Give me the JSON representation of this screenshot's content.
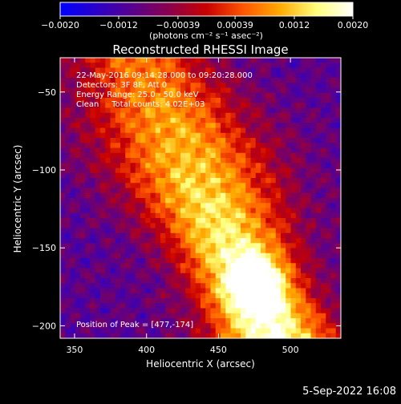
{
  "chart_data": {
    "type": "heatmap",
    "title": "Reconstructed RHESSI Image",
    "xlabel": "Heliocentric X (arcsec)",
    "ylabel": "Heliocentric Y (arcsec)",
    "xlim": [
      340,
      535
    ],
    "ylim": [
      -208,
      -28
    ],
    "xticks": [
      350,
      400,
      450,
      500
    ],
    "yticks": [
      -50,
      -100,
      -150,
      -200
    ],
    "colorbar": {
      "unit_label": "(photons cm⁻² s⁻¹ asec⁻²)",
      "range": [
        -0.002,
        0.002
      ],
      "tick_labels": [
        "−0.0020",
        "−0.0012",
        "−0.00039",
        "0.00039",
        "0.0012",
        "0.0020"
      ],
      "tick_values": [
        -0.002,
        -0.0012,
        -0.00039,
        0.00039,
        0.0012,
        0.002
      ],
      "colors": [
        "#0000ff",
        "#2a00c8",
        "#5a008c",
        "#8c004a",
        "#c80000",
        "#ff5500",
        "#ffaa00",
        "#ffff7a",
        "#ffffff"
      ]
    },
    "peak": {
      "x": 477,
      "y": -174
    },
    "source_band": {
      "x": [
        400,
        477
      ],
      "y": [
        -38,
        -185
      ],
      "notes": "diagonal emission band from upper-left to lower-right, dim violet/black edges"
    },
    "annotations": [
      "22-May-2016 09:14:28.000 to 09:20:28.000",
      "Detectors: 3F 8F, Att 0",
      "Energy Range: 25.0 - 50.0 keV",
      "Clean     Total counts: 4.02E+03",
      "Position of Peak = [477,-174]"
    ]
  },
  "footer": {
    "timestamp": "5-Sep-2022 16:08"
  }
}
